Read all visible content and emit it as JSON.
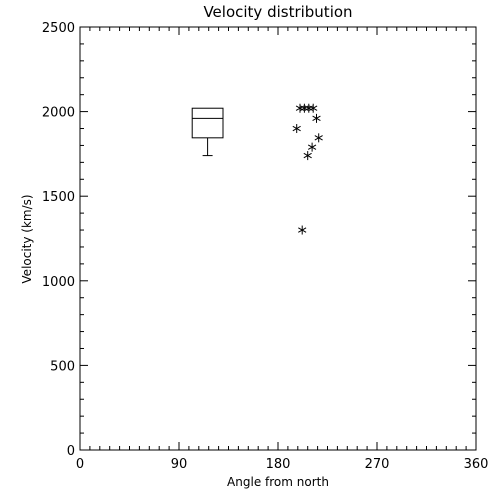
{
  "chart_data": {
    "type": "scatter",
    "title": "Velocity distribution",
    "xlabel": "Angle from north",
    "ylabel": "Velocity (km/s)",
    "xlim": [
      0,
      360
    ],
    "ylim": [
      0,
      2500
    ],
    "x_ticks": [
      0,
      90,
      180,
      270,
      360
    ],
    "y_ticks": [
      0,
      500,
      1000,
      1500,
      2000,
      2500
    ],
    "x_tick_labels": [
      "0",
      "90",
      "180",
      "270",
      "360"
    ],
    "y_tick_labels": [
      "0",
      "500",
      "1000",
      "1500",
      "2000",
      "2500"
    ],
    "grid": false,
    "boxplot": {
      "x_range": [
        102,
        130
      ],
      "whisker_low": 1740,
      "q1": 1845,
      "median": 1960,
      "q3": 2020,
      "whisker_high": 2020
    },
    "points": [
      {
        "x": 200,
        "y": 2020
      },
      {
        "x": 204,
        "y": 2020
      },
      {
        "x": 208,
        "y": 2020
      },
      {
        "x": 212,
        "y": 2020
      },
      {
        "x": 197,
        "y": 1900
      },
      {
        "x": 215,
        "y": 1960
      },
      {
        "x": 217,
        "y": 1845
      },
      {
        "x": 211,
        "y": 1790
      },
      {
        "x": 207,
        "y": 1740
      },
      {
        "x": 202,
        "y": 1300
      }
    ]
  }
}
